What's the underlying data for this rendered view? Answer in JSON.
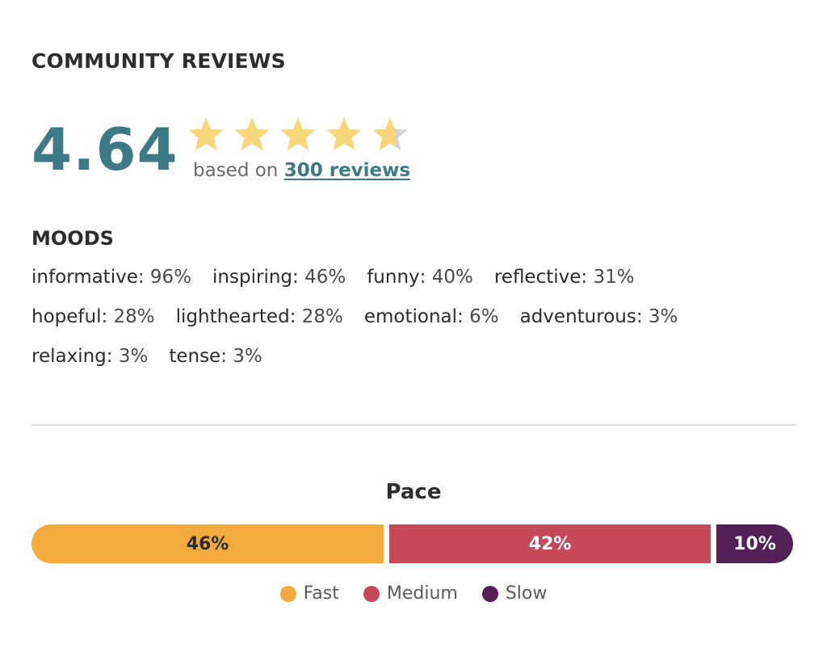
{
  "community": {
    "title": "COMMUNITY REVIEWS",
    "rating": "4.64",
    "rating_value": 4.64,
    "stars_max": 5,
    "based_on_prefix": "based on ",
    "reviews_link": "300 reviews"
  },
  "moods": {
    "title": "MOODS",
    "lines": [
      [
        {
          "name": "informative",
          "pct": "96%"
        },
        {
          "name": "inspiring",
          "pct": "46%"
        },
        {
          "name": "funny",
          "pct": "40%"
        },
        {
          "name": "reflective",
          "pct": "31%"
        }
      ],
      [
        {
          "name": "hopeful",
          "pct": "28%"
        },
        {
          "name": "lighthearted",
          "pct": "28%"
        },
        {
          "name": "emotional",
          "pct": "6%"
        },
        {
          "name": "adventurous",
          "pct": "3%"
        }
      ],
      [
        {
          "name": "relaxing",
          "pct": "3%"
        },
        {
          "name": "tense",
          "pct": "3%"
        }
      ]
    ]
  },
  "pace": {
    "title": "Pace",
    "segments": [
      {
        "key": "fast",
        "label": "Fast",
        "value": 46,
        "display": "46%",
        "color": "#f2aa3c"
      },
      {
        "key": "medium",
        "label": "Medium",
        "value": 42,
        "display": "42%",
        "color": "#c6495a"
      },
      {
        "key": "slow",
        "label": "Slow",
        "value": 10,
        "display": "10%",
        "color": "#551f57"
      }
    ]
  },
  "colors": {
    "accent": "#3b7a86",
    "star_filled": "#f7d77a",
    "star_empty": "#d3d3d3"
  },
  "icons": {
    "star": "star-icon"
  }
}
